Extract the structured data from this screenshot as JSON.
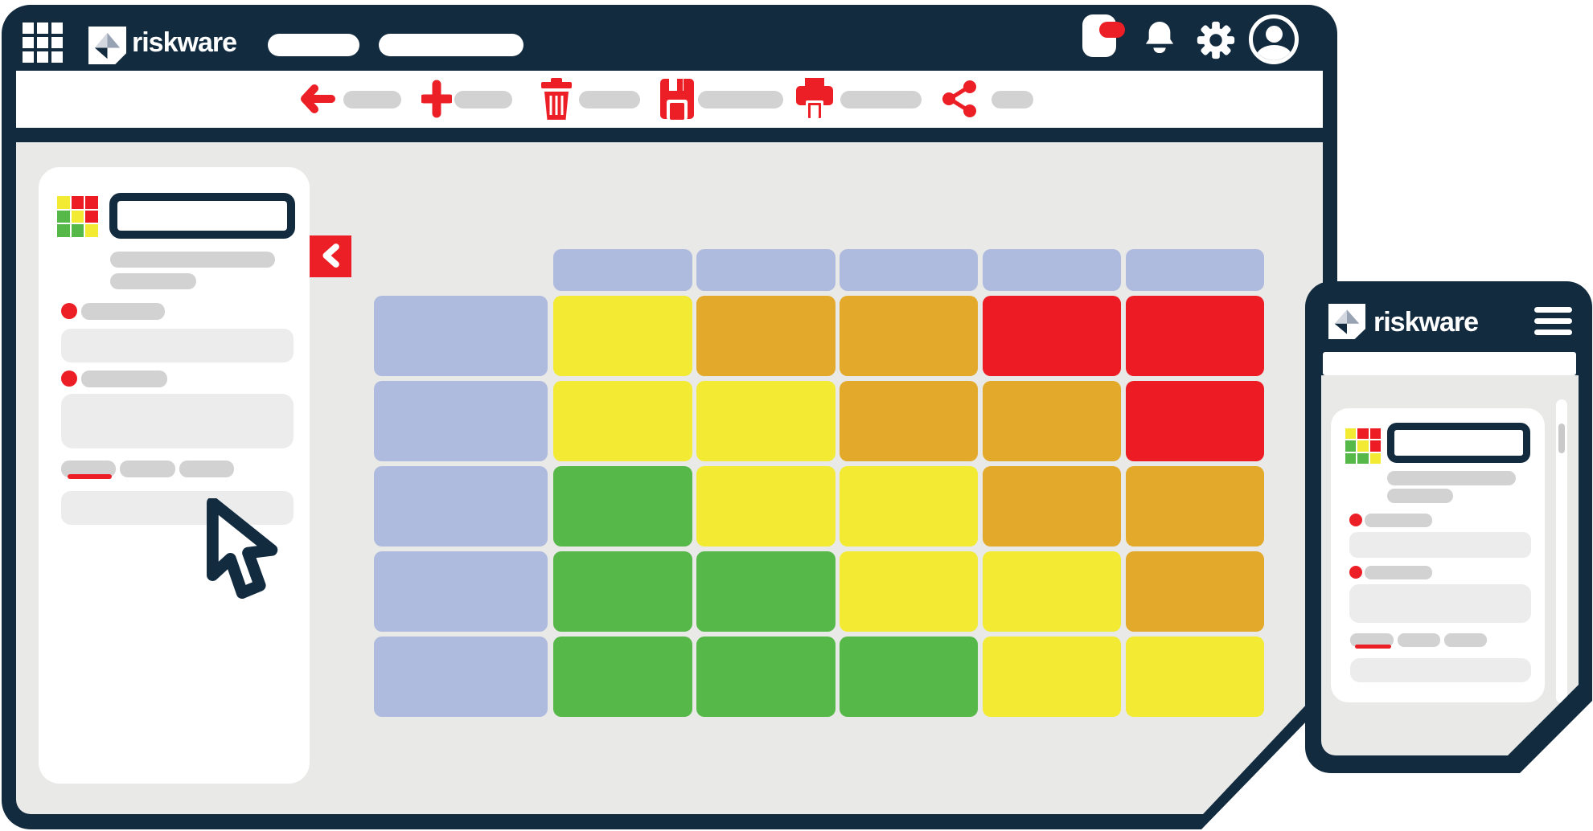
{
  "brand": {
    "name": "riskware"
  },
  "colors": {
    "navy": "#132b3f",
    "accent_red": "#ec1f26",
    "lavender": "#aebade",
    "yellow": "#f3eb33",
    "amber": "#e3a92a",
    "green": "#56b848",
    "red": "#ed1c24",
    "placeholder_pill": "#d2d2d2",
    "placeholder_box": "#ececec",
    "canvas_gray": "#e9e9e8"
  },
  "header": {
    "brand_label": "riskware",
    "nav_placeholder_count": 2,
    "icons": [
      "apps-grid-icon",
      "app-badge-icon",
      "bell-icon",
      "gear-icon",
      "avatar-icon"
    ],
    "notification_badge": true
  },
  "toolbar": {
    "actions": [
      "back",
      "add",
      "delete",
      "save",
      "print",
      "share"
    ]
  },
  "sidebar": {
    "logo": "mini-risk-matrix",
    "has_search_box": true,
    "placeholder_lines": 2,
    "list_items_with_status_dot": 2,
    "tab_count": 3,
    "active_tab_index": 0,
    "collapse_button": "chevron-left"
  },
  "risk_matrix": {
    "type": "heatmap",
    "columns": 5,
    "rows": 5,
    "header_color": "lavender",
    "row_label_color": "lavender",
    "cells": [
      [
        "yellow",
        "amber",
        "amber",
        "red",
        "red"
      ],
      [
        "yellow",
        "yellow",
        "amber",
        "amber",
        "red"
      ],
      [
        "green",
        "yellow",
        "yellow",
        "amber",
        "amber"
      ],
      [
        "green",
        "green",
        "yellow",
        "yellow",
        "amber"
      ],
      [
        "green",
        "green",
        "green",
        "yellow",
        "yellow"
      ]
    ]
  },
  "mini_matrix": {
    "cells": [
      [
        "yellow",
        "red",
        "red"
      ],
      [
        "green",
        "yellow",
        "red"
      ],
      [
        "green",
        "green",
        "yellow"
      ]
    ]
  },
  "phone": {
    "brand_label": "riskware",
    "menu_icon": "hamburger-icon",
    "has_search_bar": true,
    "has_scrollbar": true,
    "tab_count": 3,
    "active_tab_index": 0
  }
}
